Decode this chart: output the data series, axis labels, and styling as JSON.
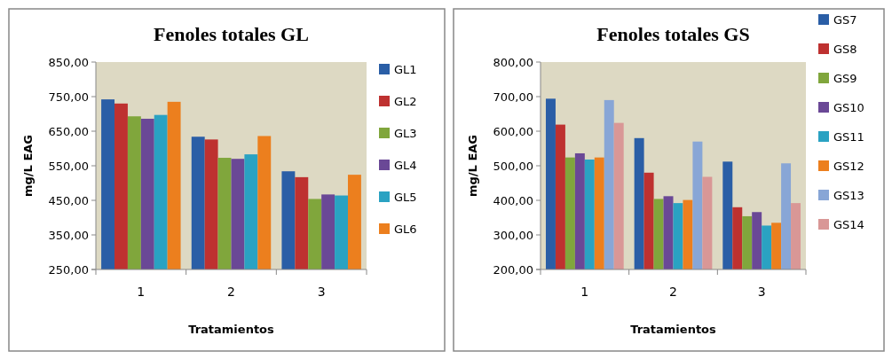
{
  "chart_data": [
    {
      "type": "bar",
      "title": "Fenoles totales GL",
      "xlabel": "Tratamientos",
      "ylabel": "mg/L EAG",
      "categories": [
        "1",
        "2",
        "3"
      ],
      "legend": "right",
      "grid": false,
      "ylim": [
        250,
        850
      ],
      "yticks": [
        {
          "value": 250,
          "label": "250,00"
        },
        {
          "value": 350,
          "label": "350,00"
        },
        {
          "value": 450,
          "label": "450,00"
        },
        {
          "value": 550,
          "label": "550,00"
        },
        {
          "value": 650,
          "label": "650,00"
        },
        {
          "value": 750,
          "label": "750,00"
        },
        {
          "value": 850,
          "label": "850,00"
        }
      ],
      "series": [
        {
          "name": "GL1",
          "color": "#2a5ea6",
          "values": [
            742,
            634,
            534
          ]
        },
        {
          "name": "GL2",
          "color": "#be3130",
          "values": [
            730,
            626,
            517
          ]
        },
        {
          "name": "GL3",
          "color": "#80a63c",
          "values": [
            693,
            573,
            454
          ]
        },
        {
          "name": "GL4",
          "color": "#6a4896",
          "values": [
            686,
            570,
            467
          ]
        },
        {
          "name": "GL5",
          "color": "#2aa2c2",
          "values": [
            697,
            583,
            464
          ]
        },
        {
          "name": "GL6",
          "color": "#ec7f1e",
          "values": [
            735,
            636,
            524
          ]
        }
      ]
    },
    {
      "type": "bar",
      "title": "Fenoles totales GS",
      "xlabel": "Tratamientos",
      "ylabel": "mg/L EAG",
      "categories": [
        "1",
        "2",
        "3"
      ],
      "legend": "right",
      "grid": false,
      "ylim": [
        200,
        800
      ],
      "yticks": [
        {
          "value": 200,
          "label": "200,00"
        },
        {
          "value": 300,
          "label": "300,00"
        },
        {
          "value": 400,
          "label": "400,00"
        },
        {
          "value": 500,
          "label": "500,00"
        },
        {
          "value": 600,
          "label": "600,00"
        },
        {
          "value": 700,
          "label": "700,00"
        },
        {
          "value": 800,
          "label": "800,00"
        }
      ],
      "series": [
        {
          "name": "GS7",
          "color": "#2a5ea6",
          "values": [
            694,
            580,
            512
          ]
        },
        {
          "name": "GS8",
          "color": "#be3130",
          "values": [
            619,
            480,
            380
          ]
        },
        {
          "name": "GS9",
          "color": "#80a63c",
          "values": [
            524,
            404,
            354
          ]
        },
        {
          "name": "GS10",
          "color": "#6a4896",
          "values": [
            536,
            412,
            366
          ]
        },
        {
          "name": "GS11",
          "color": "#2aa2c2",
          "values": [
            518,
            392,
            327
          ]
        },
        {
          "name": "GS12",
          "color": "#ec7f1e",
          "values": [
            524,
            401,
            335
          ]
        },
        {
          "name": "GS13",
          "color": "#88a6d6",
          "values": [
            690,
            570,
            507
          ]
        },
        {
          "name": "GS14",
          "color": "#d99796",
          "values": [
            624,
            468,
            392
          ]
        }
      ]
    }
  ]
}
